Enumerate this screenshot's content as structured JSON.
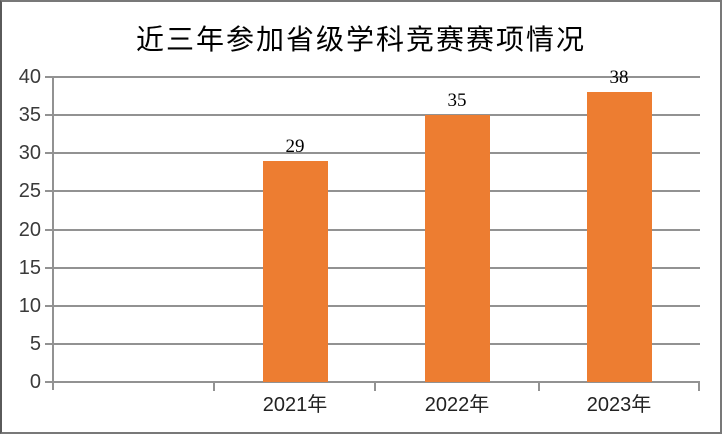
{
  "chart_data": {
    "type": "bar",
    "title": "近三年参加省级学科竞赛赛项情况",
    "categories": [
      "2021年",
      "2022年",
      "2023年"
    ],
    "values": [
      29,
      35,
      38
    ],
    "data_labels": [
      "29",
      "35",
      "38"
    ],
    "xlabel": "",
    "ylabel": "",
    "ylim": [
      0,
      40
    ],
    "yticks": [
      0,
      5,
      10,
      15,
      20,
      25,
      30,
      35,
      40
    ],
    "grid": true,
    "legend": false,
    "bar_color": "#ED7D31",
    "gridline_color": "#929292",
    "axis_color": "#929292",
    "title_color": "#000000",
    "tick_label_color": "#3a3a3a"
  }
}
